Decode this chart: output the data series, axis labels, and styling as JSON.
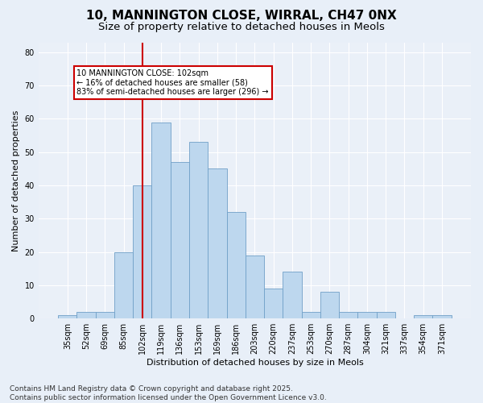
{
  "title1": "10, MANNINGTON CLOSE, WIRRAL, CH47 0NX",
  "title2": "Size of property relative to detached houses in Meols",
  "xlabel": "Distribution of detached houses by size in Meols",
  "ylabel": "Number of detached properties",
  "footnote1": "Contains HM Land Registry data © Crown copyright and database right 2025.",
  "footnote2": "Contains public sector information licensed under the Open Government Licence v3.0.",
  "bar_labels": [
    "35sqm",
    "52sqm",
    "69sqm",
    "85sqm",
    "102sqm",
    "119sqm",
    "136sqm",
    "153sqm",
    "169sqm",
    "186sqm",
    "203sqm",
    "220sqm",
    "237sqm",
    "253sqm",
    "270sqm",
    "287sqm",
    "304sqm",
    "321sqm",
    "337sqm",
    "354sqm",
    "371sqm"
  ],
  "bar_values": [
    1,
    2,
    2,
    20,
    40,
    59,
    47,
    53,
    45,
    32,
    19,
    9,
    14,
    2,
    8,
    2,
    2,
    2,
    0,
    1,
    1
  ],
  "bar_color": "#BDD7EE",
  "bar_edge_color": "#70A0C8",
  "vline_color": "#CC0000",
  "annotation_text": "10 MANNINGTON CLOSE: 102sqm\n← 16% of detached houses are smaller (58)\n83% of semi-detached houses are larger (296) →",
  "annotation_box_color": "#FFFFFF",
  "annotation_box_edge": "#CC0000",
  "ylim": [
    0,
    83
  ],
  "yticks": [
    0,
    10,
    20,
    30,
    40,
    50,
    60,
    70,
    80
  ],
  "bg_color": "#E8EFF8",
  "plot_bg_color": "#EAF0F8",
  "grid_color": "#FFFFFF",
  "title_fontsize": 11,
  "subtitle_fontsize": 9.5,
  "axis_label_fontsize": 8,
  "tick_fontsize": 7,
  "footnote_fontsize": 6.5
}
